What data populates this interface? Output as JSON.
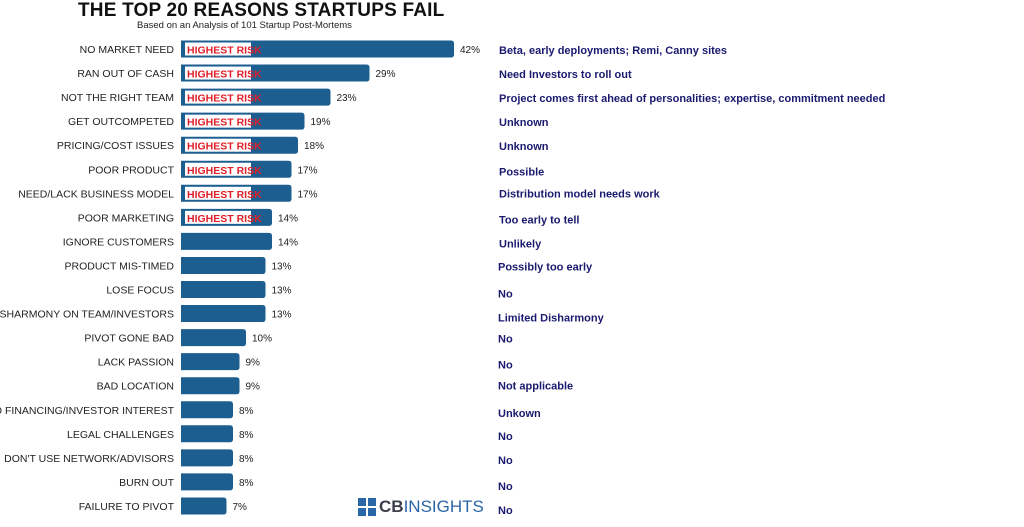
{
  "title": "THE TOP 20 REASONS STARTUPS FAIL",
  "subtitle": "Based on an Analysis of 101 Startup Post-Mortems",
  "badge_label": "HIGHEST RISK",
  "logo": {
    "bold": "CB",
    "light": "INSIGHTS"
  },
  "colors": {
    "bar": "#1c5e90",
    "badge_text": "#e0202a",
    "comment": "#1a1a6e",
    "text": "#222222"
  },
  "chart_data": {
    "type": "bar",
    "orientation": "horizontal",
    "title": "THE TOP 20 REASONS STARTUPS FAIL",
    "subtitle": "Based on an Analysis of 101 Startup Post-Mortems",
    "categories": [
      "NO MARKET NEED",
      "RAN OUT OF CASH",
      "NOT THE RIGHT TEAM",
      "GET OUTCOMPETED",
      "PRICING/COST ISSUES",
      "POOR PRODUCT",
      "NEED/LACK BUSINESS MODEL",
      "POOR MARKETING",
      "IGNORE CUSTOMERS",
      "PRODUCT MIS-TIMED",
      "LOSE FOCUS",
      "DISHARMONY ON TEAM/INVESTORS",
      "PIVOT GONE BAD",
      "LACK PASSION",
      "BAD LOCATION",
      "NO FINANCING/INVESTOR INTEREST",
      "LEGAL CHALLENGES",
      "DON'T USE NETWORK/ADVISORS",
      "BURN OUT",
      "FAILURE TO PIVOT"
    ],
    "values": [
      42,
      29,
      23,
      19,
      18,
      17,
      17,
      14,
      14,
      13,
      13,
      13,
      10,
      9,
      9,
      8,
      8,
      8,
      8,
      7
    ],
    "value_labels": [
      "42%",
      "29%",
      "23%",
      "19%",
      "18%",
      "17%",
      "17%",
      "14%",
      "14%",
      "13%",
      "13%",
      "13%",
      "10%",
      "9%",
      "9%",
      "8%",
      "8%",
      "8%",
      "8%",
      "7%"
    ],
    "highest_risk": [
      true,
      true,
      true,
      true,
      true,
      true,
      true,
      true,
      false,
      false,
      false,
      false,
      false,
      false,
      false,
      false,
      false,
      false,
      false,
      false
    ],
    "comments": [
      "Beta, early deployments; Remi, Canny sites",
      "Need Investors to roll out",
      "Project comes first ahead of personalities; expertise, commitment needed",
      "Unknown",
      "Unknown",
      "Possible",
      "Distribution model needs work",
      "Too early to tell",
      "Unlikely",
      "Possibly too early",
      "No",
      "Limited Disharmony",
      "No",
      "No",
      "Not applicable",
      "Unkown",
      "No",
      "No",
      "No",
      "No"
    ],
    "xlim": [
      0,
      42
    ],
    "grid": false,
    "legend": "none"
  }
}
